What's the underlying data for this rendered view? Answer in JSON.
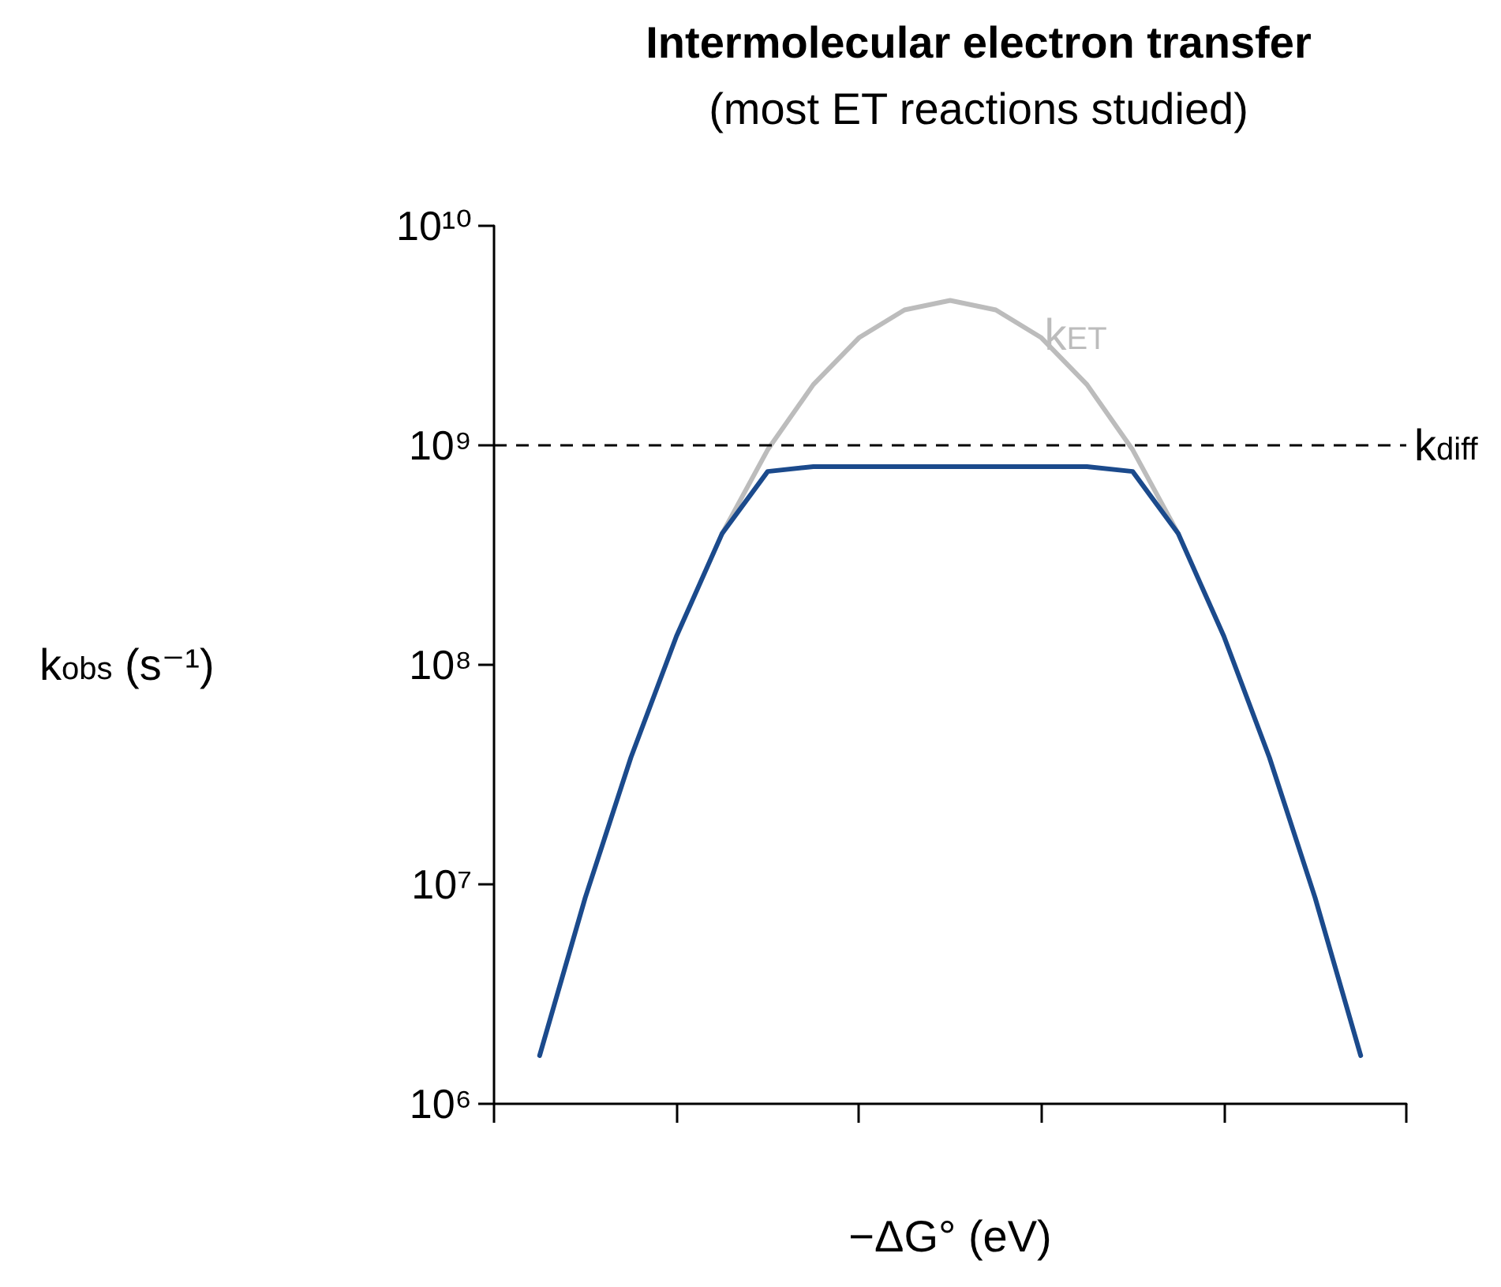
{
  "chart_data": {
    "type": "line",
    "title": "Intermolecular electron transfer",
    "subtitle": "(most ET reactions studied)",
    "xlabel": "−ΔG° (eV)",
    "ylabel": "k$_{obs}$ (s⁻¹)",
    "log": "y",
    "categories": [
      null,
      null,
      null,
      null,
      null,
      null,
      null,
      null,
      null,
      null,
      null,
      null,
      null,
      null,
      null,
      null,
      null,
      null,
      null,
      null,
      null
    ],
    "ylim": [
      1000000,
      10000000000
    ],
    "yticks": [
      {
        "value": 1000000,
        "label": "10⁶"
      },
      {
        "value": 10000000,
        "label": "10⁷"
      },
      {
        "value": 100000000,
        "label": "10⁸"
      },
      {
        "value": 1000000000,
        "label": "10⁹"
      },
      {
        "value": 10000000000,
        "label": "10¹⁰"
      }
    ],
    "tick_labels": "y",
    "grid": false,
    "marker": "none",
    "line_style": "solid",
    "series": [
      {
        "name": "k$_{ET}$",
        "color": "#bcbcbc",
        "values": [
          null,
          null,
          null,
          null,
          null,
          396000000,
          955000000,
          1890000000,
          3090000000,
          4140000000,
          4570000000,
          4140000000,
          3090000000,
          1890000000,
          955000000,
          396000000,
          null,
          null,
          null,
          null,
          null
        ]
      },
      {
        "color": "#1b4a8c",
        "values": [
          null,
          1660000,
          8700000,
          37800000,
          135000000,
          396000000,
          760000000,
          800000000,
          800000000,
          800000000,
          800000000,
          800000000,
          800000000,
          800000000,
          760000000,
          396000000,
          135000000,
          37800000,
          8700000,
          1660000,
          null
        ]
      }
    ],
    "ref_lines": [
      {
        "axis": "y",
        "value": 1000000000,
        "label": "k$_{diff}$",
        "color": "#000000",
        "line_style": "dashed"
      }
    ]
  }
}
